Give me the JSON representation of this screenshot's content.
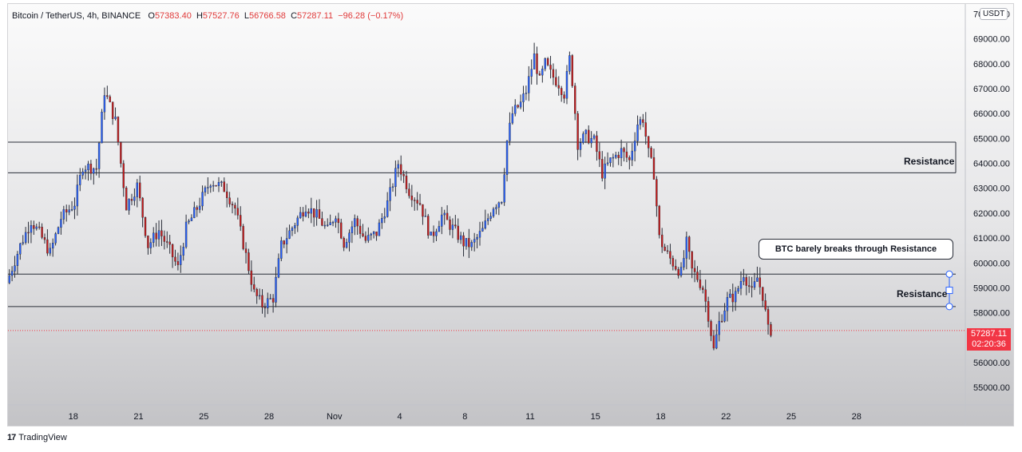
{
  "chart_data": {
    "type": "candlestick",
    "title": "Bitcoin / TetherUS, 4h, BINANCE",
    "symbol": "Bitcoin / TetherUS",
    "interval": "4h",
    "exchange": "BINANCE",
    "ohlc": {
      "open_label": "O",
      "open": "57383.40",
      "high_label": "H",
      "high": "57527.76",
      "low_label": "L",
      "low": "56766.58",
      "close_label": "C",
      "close": "57287.11",
      "change": "−96.28 (−0.17%)"
    },
    "currency": "USDT",
    "last_price": 57287.11,
    "last_price_label": "57287.11",
    "countdown": "02:20:36",
    "y_range": [
      54300,
      70400
    ],
    "y_ticks": [
      {
        "value": 55000,
        "label": "55000.00"
      },
      {
        "value": 56000,
        "label": "56000.00"
      },
      {
        "value": 57000,
        "label": "57000.00"
      },
      {
        "value": 58000,
        "label": "58000.00"
      },
      {
        "value": 59000,
        "label": "59000.00"
      },
      {
        "value": 60000,
        "label": "60000.00"
      },
      {
        "value": 61000,
        "label": "61000.00"
      },
      {
        "value": 62000,
        "label": "62000.00"
      },
      {
        "value": 63000,
        "label": "63000.00"
      },
      {
        "value": 64000,
        "label": "64000.00"
      },
      {
        "value": 65000,
        "label": "65000.00"
      },
      {
        "value": 66000,
        "label": "66000.00"
      },
      {
        "value": 67000,
        "label": "67000.00"
      },
      {
        "value": 68000,
        "label": "68000.00"
      },
      {
        "value": 69000,
        "label": "69000.00"
      },
      {
        "value": 70000,
        "label": "70000.00"
      }
    ],
    "x_range": [
      0,
      352
    ],
    "x_ticks": [
      {
        "bar": 24,
        "label": "18"
      },
      {
        "bar": 48,
        "label": "21"
      },
      {
        "bar": 72,
        "label": "25"
      },
      {
        "bar": 96,
        "label": "28"
      },
      {
        "bar": 120,
        "label": "Nov"
      },
      {
        "bar": 144,
        "label": "4"
      },
      {
        "bar": 168,
        "label": "8"
      },
      {
        "bar": 192,
        "label": "11"
      },
      {
        "bar": 216,
        "label": "15"
      },
      {
        "bar": 240,
        "label": "18"
      },
      {
        "bar": 264,
        "label": "22"
      },
      {
        "bar": 288,
        "label": "25"
      },
      {
        "bar": 312,
        "label": "28"
      }
    ],
    "anchors": [
      [
        0,
        59200
      ],
      [
        5,
        60700
      ],
      [
        9,
        61700
      ],
      [
        12,
        61200
      ],
      [
        16,
        60400
      ],
      [
        20,
        61800
      ],
      [
        25,
        62400
      ],
      [
        28,
        63900
      ],
      [
        33,
        63800
      ],
      [
        36,
        66900
      ],
      [
        40,
        65700
      ],
      [
        44,
        62300
      ],
      [
        48,
        63100
      ],
      [
        52,
        60700
      ],
      [
        56,
        61300
      ],
      [
        60,
        60500
      ],
      [
        63,
        59800
      ],
      [
        66,
        61400
      ],
      [
        70,
        62200
      ],
      [
        75,
        63300
      ],
      [
        80,
        63000
      ],
      [
        84,
        62200
      ],
      [
        88,
        60300
      ],
      [
        91,
        58800
      ],
      [
        94,
        58300
      ],
      [
        98,
        58600
      ],
      [
        101,
        60700
      ],
      [
        106,
        61600
      ],
      [
        110,
        62300
      ],
      [
        114,
        61900
      ],
      [
        118,
        61300
      ],
      [
        121,
        62000
      ],
      [
        124,
        60800
      ],
      [
        128,
        61700
      ],
      [
        132,
        60900
      ],
      [
        136,
        61200
      ],
      [
        140,
        62400
      ],
      [
        144,
        64000
      ],
      [
        148,
        62900
      ],
      [
        152,
        62400
      ],
      [
        156,
        61000
      ],
      [
        160,
        61900
      ],
      [
        164,
        61400
      ],
      [
        168,
        60800
      ],
      [
        171,
        60700
      ],
      [
        175,
        61300
      ],
      [
        179,
        62300
      ],
      [
        182,
        62600
      ],
      [
        184,
        64900
      ],
      [
        186,
        66000
      ],
      [
        189,
        66400
      ],
      [
        191,
        66900
      ],
      [
        194,
        68300
      ],
      [
        196,
        67300
      ],
      [
        198,
        68000
      ],
      [
        200,
        67600
      ],
      [
        203,
        67200
      ],
      [
        205,
        66800
      ],
      [
        207,
        68200
      ],
      [
        208,
        67300
      ],
      [
        210,
        64800
      ],
      [
        213,
        65100
      ],
      [
        216,
        64900
      ],
      [
        219,
        63600
      ],
      [
        222,
        64100
      ],
      [
        226,
        64500
      ],
      [
        229,
        64100
      ],
      [
        232,
        65600
      ],
      [
        234,
        65800
      ],
      [
        236,
        64400
      ],
      [
        238,
        63600
      ],
      [
        240,
        61000
      ],
      [
        242,
        60500
      ],
      [
        245,
        60000
      ],
      [
        248,
        59600
      ],
      [
        250,
        60800
      ],
      [
        252,
        59700
      ],
      [
        254,
        59400
      ],
      [
        256,
        59000
      ],
      [
        258,
        57900
      ],
      [
        260,
        56500
      ],
      [
        262,
        57600
      ],
      [
        265,
        58500
      ],
      [
        268,
        58700
      ],
      [
        271,
        59600
      ],
      [
        274,
        58800
      ],
      [
        276,
        59400
      ],
      [
        278,
        58700
      ],
      [
        280,
        57300
      ]
    ],
    "last_bar": 280,
    "resistance_zones": [
      {
        "name": "Resistance",
        "upper": 64850,
        "lower": 63620
      },
      {
        "name": "Resistance",
        "upper": 59550,
        "lower": 58250
      }
    ],
    "annotation": "BTC barely breaks through Resistance",
    "up_color": "#2962ff",
    "down_color": "#c91b1b",
    "last_price_color": "#f23645"
  },
  "watermark": {
    "logo": "17",
    "text": "TradingView"
  }
}
